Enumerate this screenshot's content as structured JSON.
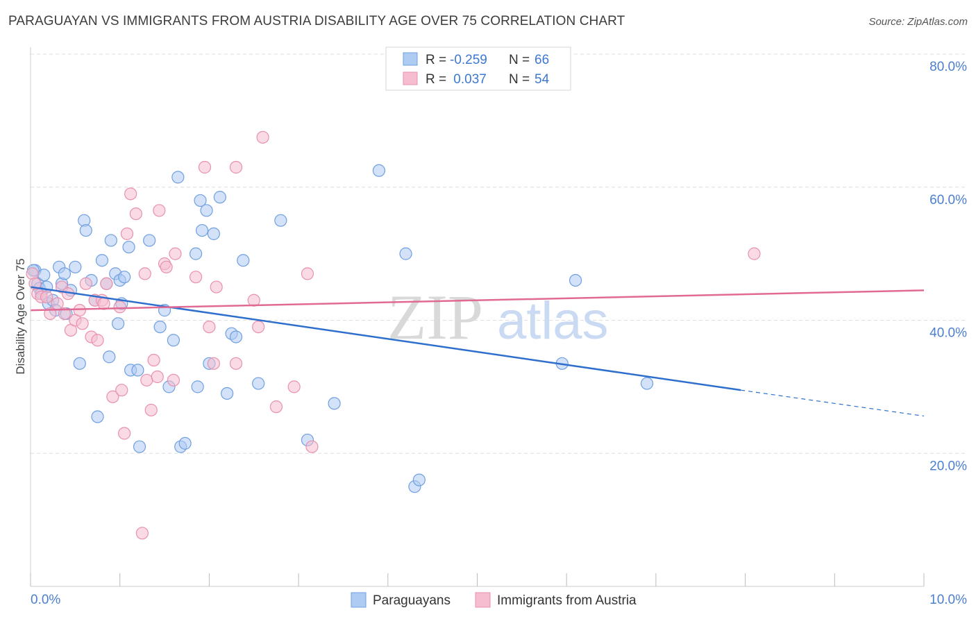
{
  "header": {
    "title": "PARAGUAYAN VS IMMIGRANTS FROM AUSTRIA DISABILITY AGE OVER 75 CORRELATION CHART",
    "source": "Source: ZipAtlas.com"
  },
  "legend_box": {
    "rows": [
      {
        "r_label": "R =",
        "r_value": "-0.259",
        "n_label": "N =",
        "n_value": "66"
      },
      {
        "r_label": "R =",
        "r_value": " 0.037",
        "n_label": "N =",
        "n_value": "54"
      }
    ]
  },
  "watermark": {
    "zip": "ZIP",
    "atlas": "atlas"
  },
  "colors": {
    "blue_fill": "#aecbf2",
    "blue_stroke": "#6f9fe0",
    "blue_line": "#2e6fce",
    "pink_fill": "#f6bdd0",
    "pink_stroke": "#e890ae",
    "pink_line": "#e06a94",
    "tick_label": "#4a7fd0",
    "grid": "#dedede"
  },
  "chart_data": {
    "type": "scatter",
    "title": "PARAGUAYAN VS IMMIGRANTS FROM AUSTRIA DISABILITY AGE OVER 75 CORRELATION CHART",
    "xlabel": "",
    "ylabel": "Disability Age Over 75",
    "xlim": [
      0,
      10
    ],
    "ylim": [
      0,
      80
    ],
    "x_tick_labels": [
      "0.0%",
      "10.0%"
    ],
    "y_tick_labels": [
      "20.0%",
      "40.0%",
      "60.0%",
      "80.0%"
    ],
    "y_ticks": [
      20,
      40,
      60,
      80
    ],
    "grid": true,
    "legend_position": "bottom",
    "series": [
      {
        "name": "Paraguayans",
        "color": "#aecbf2",
        "r": -0.259,
        "n": 66,
        "trend": {
          "x": [
            0.0,
            7.95
          ],
          "y": [
            45.0,
            29.5
          ],
          "dashed_to_x": 10.0,
          "dashed_to_y": 25.6
        },
        "points": [
          [
            0.05,
            47.5
          ],
          [
            0.08,
            45.5
          ],
          [
            0.1,
            44.8
          ],
          [
            0.15,
            46.8
          ],
          [
            0.18,
            45.0
          ],
          [
            0.2,
            42.5
          ],
          [
            0.25,
            43.0
          ],
          [
            0.28,
            41.5
          ],
          [
            0.32,
            48.0
          ],
          [
            0.35,
            45.5
          ],
          [
            0.38,
            47.0
          ],
          [
            0.4,
            41.0
          ],
          [
            0.45,
            44.5
          ],
          [
            0.5,
            48.0
          ],
          [
            0.55,
            33.5
          ],
          [
            0.6,
            55.0
          ],
          [
            0.62,
            53.5
          ],
          [
            0.68,
            46.0
          ],
          [
            0.72,
            43.0
          ],
          [
            0.75,
            25.5
          ],
          [
            0.8,
            49.0
          ],
          [
            0.85,
            45.5
          ],
          [
            0.88,
            34.5
          ],
          [
            0.9,
            52.0
          ],
          [
            0.95,
            47.0
          ],
          [
            0.98,
            39.5
          ],
          [
            1.0,
            46.0
          ],
          [
            1.02,
            42.5
          ],
          [
            1.05,
            46.5
          ],
          [
            1.1,
            51.0
          ],
          [
            1.12,
            32.5
          ],
          [
            1.2,
            32.5
          ],
          [
            1.22,
            21.0
          ],
          [
            1.33,
            52.0
          ],
          [
            1.45,
            39.0
          ],
          [
            1.5,
            41.5
          ],
          [
            1.55,
            30.0
          ],
          [
            1.6,
            37.0
          ],
          [
            1.65,
            61.5
          ],
          [
            1.68,
            21.0
          ],
          [
            1.73,
            21.5
          ],
          [
            1.85,
            50.0
          ],
          [
            1.87,
            30.0
          ],
          [
            1.9,
            58.0
          ],
          [
            1.92,
            53.5
          ],
          [
            1.97,
            56.5
          ],
          [
            2.0,
            33.5
          ],
          [
            2.05,
            53.0
          ],
          [
            2.12,
            58.5
          ],
          [
            2.2,
            29.0
          ],
          [
            2.25,
            38.0
          ],
          [
            2.3,
            37.5
          ],
          [
            2.38,
            49.0
          ],
          [
            2.55,
            30.5
          ],
          [
            2.8,
            55.0
          ],
          [
            3.1,
            22.0
          ],
          [
            3.4,
            27.5
          ],
          [
            3.9,
            62.5
          ],
          [
            4.2,
            50.0
          ],
          [
            4.3,
            15.0
          ],
          [
            4.35,
            16.0
          ],
          [
            5.95,
            33.5
          ],
          [
            6.1,
            46.0
          ],
          [
            6.9,
            30.5
          ],
          [
            0.03,
            47.5
          ],
          [
            0.12,
            44.0
          ]
        ]
      },
      {
        "name": "Immigrants from Austria",
        "color": "#f6bdd0",
        "r": 0.037,
        "n": 54,
        "trend": {
          "x": [
            0.0,
            10.0
          ],
          "y": [
            41.5,
            44.5
          ]
        },
        "points": [
          [
            0.02,
            47.0
          ],
          [
            0.08,
            44.0
          ],
          [
            0.12,
            43.5
          ],
          [
            0.18,
            43.5
          ],
          [
            0.22,
            41.0
          ],
          [
            0.3,
            42.5
          ],
          [
            0.35,
            45.0
          ],
          [
            0.38,
            41.0
          ],
          [
            0.42,
            44.0
          ],
          [
            0.45,
            38.5
          ],
          [
            0.5,
            40.0
          ],
          [
            0.55,
            41.5
          ],
          [
            0.58,
            39.5
          ],
          [
            0.62,
            45.5
          ],
          [
            0.68,
            37.5
          ],
          [
            0.72,
            43.0
          ],
          [
            0.75,
            37.0
          ],
          [
            0.8,
            43.0
          ],
          [
            0.82,
            42.5
          ],
          [
            0.85,
            45.5
          ],
          [
            0.92,
            28.5
          ],
          [
            1.0,
            42.0
          ],
          [
            1.02,
            29.5
          ],
          [
            1.05,
            23.0
          ],
          [
            1.08,
            53.0
          ],
          [
            1.12,
            59.0
          ],
          [
            1.18,
            56.0
          ],
          [
            1.25,
            8.0
          ],
          [
            1.28,
            47.0
          ],
          [
            1.3,
            31.0
          ],
          [
            1.35,
            26.5
          ],
          [
            1.38,
            34.0
          ],
          [
            1.42,
            31.5
          ],
          [
            1.44,
            56.5
          ],
          [
            1.5,
            48.5
          ],
          [
            1.52,
            48.0
          ],
          [
            1.6,
            31.0
          ],
          [
            1.62,
            50.0
          ],
          [
            1.85,
            46.5
          ],
          [
            1.95,
            63.0
          ],
          [
            2.0,
            39.0
          ],
          [
            2.05,
            33.5
          ],
          [
            2.08,
            45.0
          ],
          [
            2.3,
            33.5
          ],
          [
            2.3,
            63.0
          ],
          [
            2.5,
            43.0
          ],
          [
            2.55,
            39.0
          ],
          [
            2.6,
            67.5
          ],
          [
            2.75,
            27.0
          ],
          [
            2.95,
            30.0
          ],
          [
            3.1,
            47.0
          ],
          [
            3.15,
            21.0
          ],
          [
            8.1,
            50.0
          ],
          [
            0.05,
            45.5
          ]
        ]
      }
    ]
  },
  "bottom_legend": {
    "items": [
      {
        "label": "Paraguayans"
      },
      {
        "label": "Immigrants from Austria"
      }
    ]
  }
}
